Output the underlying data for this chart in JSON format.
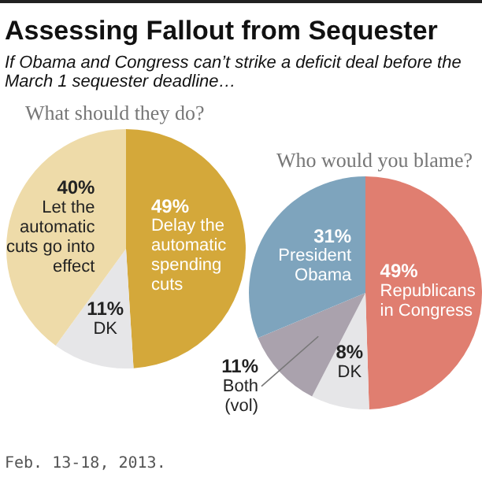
{
  "chart_data": [
    {
      "type": "other",
      "title": "Assessing Fallout from Sequester",
      "subtitle": "If Obama and Congress can’t strike a deficit deal before the March 1 sequester deadline…",
      "annotations": [
        "Feb. 13-18, 2013."
      ]
    },
    {
      "type": "pie",
      "title": "What should they do?",
      "categories": [
        "Delay the automatic spending cuts",
        "DK",
        "Let the automatic cuts go into effect"
      ],
      "values": [
        49,
        11,
        40
      ],
      "value_labels": [
        "49%",
        "11%",
        "40%"
      ],
      "colors": [
        "#d4a83a",
        "#e6e6e8",
        "#eedba9"
      ]
    },
    {
      "type": "pie",
      "title": "Who would you blame?",
      "categories": [
        "Republicans in Congress",
        "DK",
        "Both (vol)",
        "President Obama"
      ],
      "values": [
        49,
        8,
        11,
        31
      ],
      "value_labels": [
        "49%",
        "8%",
        "11%",
        "31%"
      ],
      "colors": [
        "#e07e70",
        "#e6e6e8",
        "#aaa2ad",
        "#7ea4bd"
      ]
    }
  ]
}
